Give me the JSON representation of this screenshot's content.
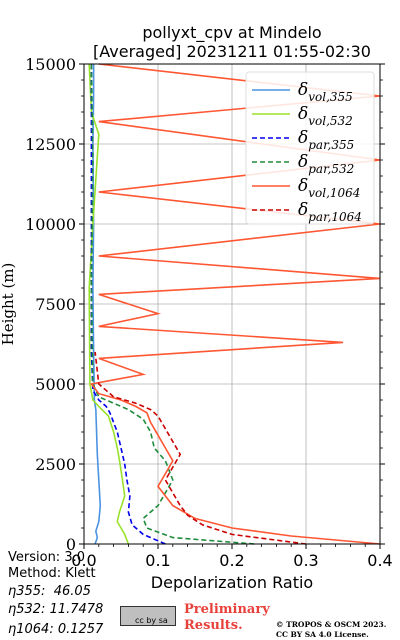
{
  "chart_data": {
    "type": "line",
    "title": "pollyxt_cpv at Mindelo",
    "subtitle": "[Averaged] 20231211 01:55-02:30",
    "xlabel": "Depolarization Ratio",
    "ylabel": "Height (m)",
    "xlim": [
      0.0,
      0.4
    ],
    "ylim": [
      0,
      15000
    ],
    "xticks": [
      "0.0",
      "0.1",
      "0.2",
      "0.3",
      "0.4"
    ],
    "yticks": [
      "0",
      "2500",
      "5000",
      "7500",
      "10000",
      "12500",
      "15000"
    ],
    "xtick_values": [
      0.0,
      0.1,
      0.2,
      0.3,
      0.4
    ],
    "ytick_values": [
      0,
      2500,
      5000,
      7500,
      10000,
      12500,
      15000
    ],
    "grid": true,
    "legend_position": "top-right",
    "series": [
      {
        "name": "δvol,355",
        "label_main": "δ",
        "label_sub": "vol,355",
        "color": "#4b93e0",
        "dash": "solid",
        "x": [
          0.015,
          0.018,
          0.016,
          0.02,
          0.022,
          0.02,
          0.018,
          0.017,
          0.016,
          0.014,
          0.013,
          0.012,
          0.013,
          0.012,
          0.013,
          0.013
        ],
        "y": [
          0,
          200,
          400,
          700,
          1200,
          2000,
          2800,
          3500,
          4200,
          4500,
          6000,
          8000,
          10000,
          12500,
          14000,
          15000
        ]
      },
      {
        "name": "δvol,532",
        "label_main": "δ",
        "label_sub": "vol,532",
        "color": "#99e22b",
        "dash": "solid",
        "x": [
          0.06,
          0.055,
          0.05,
          0.045,
          0.048,
          0.055,
          0.052,
          0.048,
          0.045,
          0.04,
          0.033,
          0.02,
          0.012,
          0.008,
          0.007,
          0.012,
          0.02,
          0.01,
          0.007
        ],
        "y": [
          0,
          300,
          500,
          700,
          1000,
          1500,
          2000,
          2600,
          3000,
          3500,
          4000,
          4300,
          4500,
          5000,
          8000,
          10000,
          12800,
          13500,
          15000
        ]
      },
      {
        "name": "δpar,355",
        "label_main": "δ",
        "label_sub": "par,355",
        "color": "#0000ee",
        "dash": "dash",
        "x": [
          0.11,
          0.08,
          0.065,
          0.06,
          0.062,
          0.058,
          0.055,
          0.05,
          0.045,
          0.04,
          0.035,
          0.03,
          0.02,
          0.012,
          0.01,
          0.01,
          0.01
        ],
        "y": [
          0,
          300,
          600,
          1000,
          1500,
          2000,
          2500,
          3000,
          3500,
          3800,
          4100,
          4300,
          4500,
          4800,
          6000,
          10000,
          15000
        ]
      },
      {
        "name": "δpar,532",
        "label_main": "δ",
        "label_sub": "par,532",
        "color": "#1e8c3a",
        "dash": "dash",
        "x": [
          0.23,
          0.12,
          0.085,
          0.08,
          0.1,
          0.12,
          0.11,
          0.095,
          0.09,
          0.08,
          0.06,
          0.04,
          0.02,
          0.012,
          0.01,
          0.012,
          0.01
        ],
        "y": [
          0,
          200,
          500,
          800,
          1200,
          2000,
          2600,
          3000,
          3500,
          3900,
          4200,
          4400,
          4600,
          5000,
          8000,
          12000,
          15000
        ]
      },
      {
        "name": "δvol,1064",
        "label_main": "δ",
        "label_sub": "vol,1064",
        "color": "#ff5733",
        "dash": "solid",
        "x": [
          0.4,
          0.28,
          0.2,
          0.15,
          0.12,
          0.1,
          0.11,
          0.12,
          0.11,
          0.1,
          0.09,
          0.085,
          0.07,
          0.05,
          0.02,
          0.01,
          0.08,
          0.02,
          0.35,
          0.02,
          0.1,
          0.02,
          0.4,
          0.02,
          0.4,
          0.02,
          0.4,
          0.02,
          0.4,
          0.02
        ],
        "y": [
          0,
          250,
          500,
          800,
          1200,
          1800,
          2200,
          2600,
          3000,
          3400,
          3800,
          4100,
          4300,
          4500,
          4700,
          5000,
          5300,
          5800,
          6300,
          6800,
          7200,
          7800,
          8300,
          9000,
          10000,
          11000,
          12000,
          13200,
          14000,
          15000
        ]
      },
      {
        "name": "δpar,1064",
        "label_main": "δ",
        "label_sub": "par,1064",
        "color": "#cc0000",
        "dash": "dash",
        "x": [
          0.3,
          0.2,
          0.16,
          0.14,
          0.13,
          0.12,
          0.11,
          0.12,
          0.13,
          0.12,
          0.11,
          0.1,
          0.09,
          0.07,
          0.04,
          0.02,
          0.015
        ],
        "y": [
          0,
          300,
          600,
          900,
          1200,
          1600,
          2000,
          2400,
          2800,
          3200,
          3600,
          4000,
          4200,
          4400,
          4600,
          5000,
          6000
        ]
      }
    ]
  },
  "footer": {
    "version": "Version: 3.0",
    "method": "Method: Klett",
    "eta355": "η355:  46.05",
    "eta532": "η532: 11.7478",
    "eta1064": "η1064: 0.1257",
    "preliminary_line1": "Preliminary",
    "preliminary_line2": "Results.",
    "credit_line1": "© TROPOS & OSCM 2023.",
    "credit_line2": "CC BY SA 4.0 License.",
    "cc_badge": "cc by sa"
  }
}
